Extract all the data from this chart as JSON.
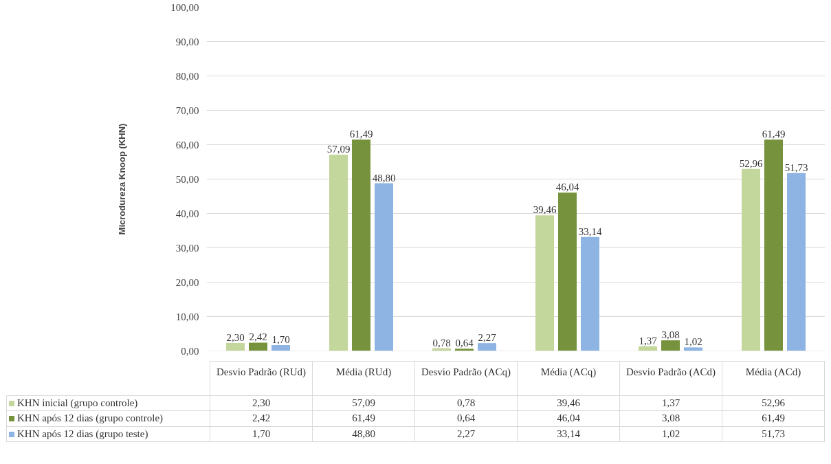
{
  "chart_data": {
    "type": "bar",
    "ylabel": "Microdureza Knoop (KHN)",
    "categories": [
      "Desvio Padrão (RUd)",
      "Média (RUd)",
      "Desvio Padrão (ACq)",
      "Média (ACq)",
      "Desvio Padrão (ACd)",
      "Média (ACd)"
    ],
    "series": [
      {
        "name": "KHN inicial (grupo controle)",
        "color": "#c3d69b",
        "values": [
          2.3,
          57.09,
          0.78,
          39.46,
          1.37,
          52.96
        ],
        "value_labels": [
          "2,30",
          "57,09",
          "0,78",
          "39,46",
          "1,37",
          "52,96"
        ]
      },
      {
        "name": "KHN após 12 dias (grupo controle)",
        "color": "#76923c",
        "values": [
          2.42,
          61.49,
          0.64,
          46.04,
          3.08,
          61.49
        ],
        "value_labels": [
          "2,42",
          "61,49",
          "0,64",
          "46,04",
          "3,08",
          "61,49"
        ]
      },
      {
        "name": "KHN após 12 dias (grupo teste)",
        "color": "#8eb4e3",
        "values": [
          1.7,
          48.8,
          2.27,
          33.14,
          1.02,
          51.73
        ],
        "value_labels": [
          "1,70",
          "48,80",
          "2,27",
          "33,14",
          "1,02",
          "51,73"
        ]
      }
    ],
    "ylim": [
      0,
      100
    ],
    "yticks": [
      {
        "value": 0,
        "label": "0,00"
      },
      {
        "value": 10,
        "label": "10,00"
      },
      {
        "value": 20,
        "label": "20,00"
      },
      {
        "value": 30,
        "label": "30,00"
      },
      {
        "value": 40,
        "label": "40,00"
      },
      {
        "value": 50,
        "label": "50,00"
      },
      {
        "value": 60,
        "label": "60,00"
      },
      {
        "value": 70,
        "label": "70,00"
      },
      {
        "value": 80,
        "label": "80,00"
      },
      {
        "value": 90,
        "label": "90,00"
      },
      {
        "value": 100,
        "label": "100,00"
      }
    ],
    "grid": "y",
    "legend": "bottom"
  }
}
